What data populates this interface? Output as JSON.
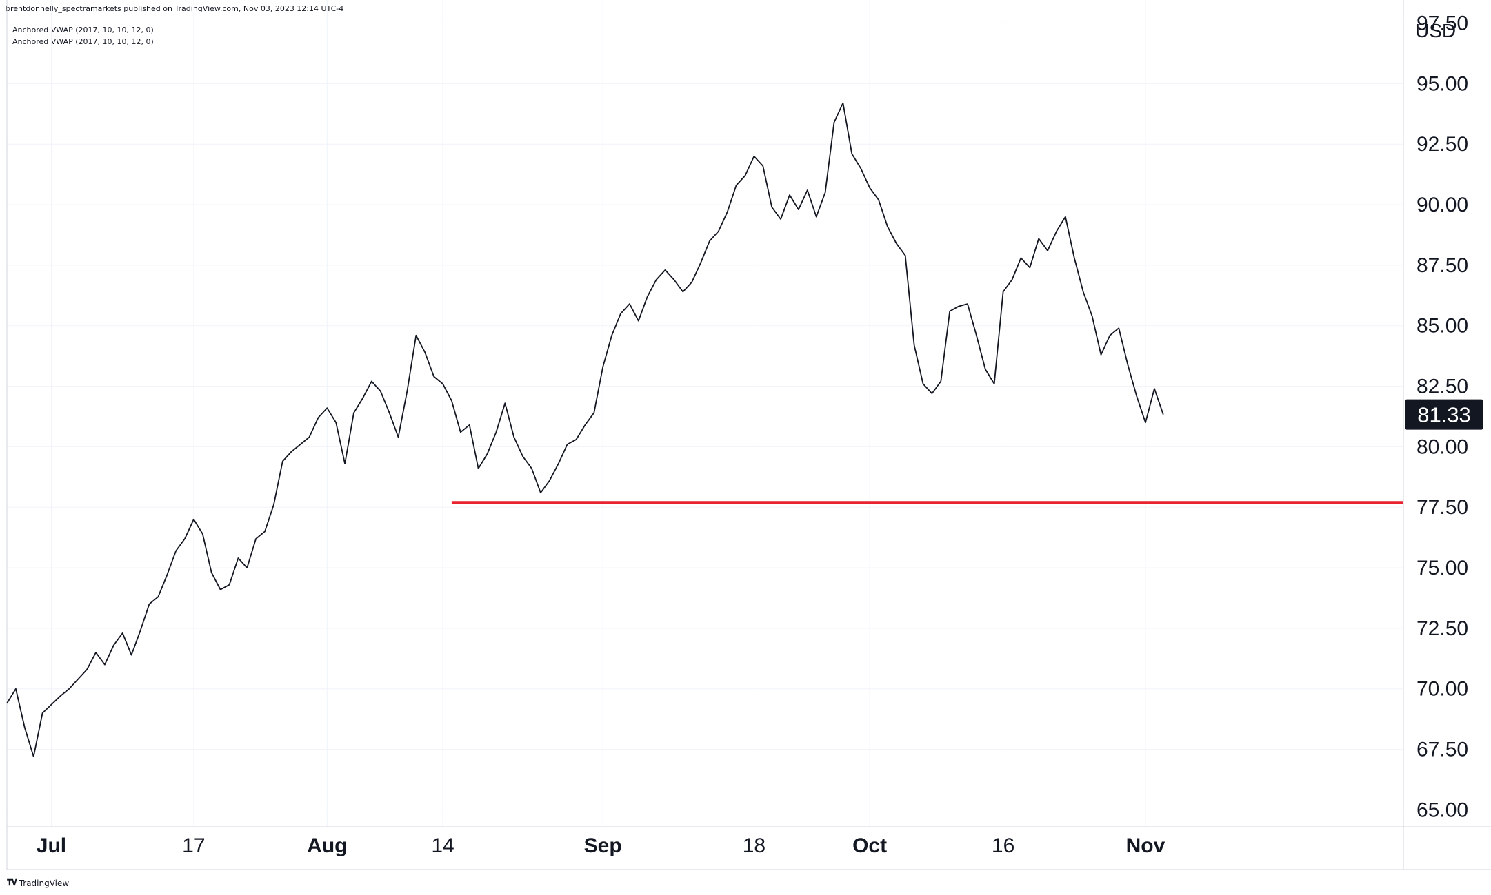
{
  "header": {
    "published_text": "brentdonnelly_spectramarkets published on TradingView.com, Nov 03, 2023 12:14 UTC-4"
  },
  "indicators": [
    "Anchored VWAP (2017, 10, 10, 12, 0)",
    "Anchored VWAP (2017, 10, 10, 12, 0)"
  ],
  "footer": {
    "brand": "TradingView",
    "logo_icon": "tradingview-logo-icon"
  },
  "colors": {
    "price_line": "#131722",
    "support_line": "#e8232f",
    "grid": "#f0f3fa",
    "axis_border": "#d1d4dc",
    "last_price_bg": "#131722",
    "last_price_text": "#ffffff"
  },
  "chart_data": {
    "type": "line",
    "title": "",
    "currency_label": "USD",
    "last_price_label": "81.33",
    "last_price": 81.33,
    "ylim": [
      64.3,
      98.0
    ],
    "xlim": [
      "2023-06-26",
      "2023-11-30"
    ],
    "y_ticks": [
      {
        "value": 65.0,
        "label": "65.00"
      },
      {
        "value": 67.5,
        "label": "67.50"
      },
      {
        "value": 70.0,
        "label": "70.00"
      },
      {
        "value": 72.5,
        "label": "72.50"
      },
      {
        "value": 75.0,
        "label": "75.00"
      },
      {
        "value": 77.5,
        "label": "77.50"
      },
      {
        "value": 80.0,
        "label": "80.00"
      },
      {
        "value": 82.5,
        "label": "82.50"
      },
      {
        "value": 85.0,
        "label": "85.00"
      },
      {
        "value": 87.5,
        "label": "87.50"
      },
      {
        "value": 90.0,
        "label": "90.00"
      },
      {
        "value": 92.5,
        "label": "92.50"
      },
      {
        "value": 95.0,
        "label": "95.00"
      },
      {
        "value": 97.5,
        "label": "97.50"
      }
    ],
    "x_ticks": [
      {
        "date": "2023-07-01",
        "label": "Jul",
        "bold": true
      },
      {
        "date": "2023-07-17",
        "label": "17",
        "bold": false
      },
      {
        "date": "2023-08-01",
        "label": "Aug",
        "bold": true
      },
      {
        "date": "2023-08-14",
        "label": "14",
        "bold": false
      },
      {
        "date": "2023-09-01",
        "label": "Sep",
        "bold": true
      },
      {
        "date": "2023-09-18",
        "label": "18",
        "bold": false
      },
      {
        "date": "2023-10-01",
        "label": "Oct",
        "bold": true
      },
      {
        "date": "2023-10-16",
        "label": "16",
        "bold": false
      },
      {
        "date": "2023-11-01",
        "label": "Nov",
        "bold": true
      }
    ],
    "support_line": {
      "value": 77.7,
      "start": "2023-08-15",
      "end": "2023-11-30"
    },
    "series": [
      {
        "points": [
          [
            "2023-06-26",
            69.4
          ],
          [
            "2023-06-27",
            70.0
          ],
          [
            "2023-06-28",
            68.4
          ],
          [
            "2023-06-29",
            67.2
          ],
          [
            "2023-06-30",
            69.0
          ],
          [
            "2023-07-02",
            69.7
          ],
          [
            "2023-07-03",
            70.0
          ],
          [
            "2023-07-05",
            70.8
          ],
          [
            "2023-07-06",
            71.5
          ],
          [
            "2023-07-07",
            71.0
          ],
          [
            "2023-07-08",
            71.8
          ],
          [
            "2023-07-09",
            72.3
          ],
          [
            "2023-07-10",
            71.4
          ],
          [
            "2023-07-11",
            72.4
          ],
          [
            "2023-07-12",
            73.5
          ],
          [
            "2023-07-13",
            73.8
          ],
          [
            "2023-07-14",
            74.7
          ],
          [
            "2023-07-15",
            75.7
          ],
          [
            "2023-07-16",
            76.2
          ],
          [
            "2023-07-17",
            77.0
          ],
          [
            "2023-07-18",
            76.4
          ],
          [
            "2023-07-19",
            74.8
          ],
          [
            "2023-07-20",
            74.1
          ],
          [
            "2023-07-21",
            74.3
          ],
          [
            "2023-07-22",
            75.4
          ],
          [
            "2023-07-23",
            75.0
          ],
          [
            "2023-07-24",
            76.2
          ],
          [
            "2023-07-25",
            76.5
          ],
          [
            "2023-07-26",
            77.6
          ],
          [
            "2023-07-27",
            79.4
          ],
          [
            "2023-07-28",
            79.8
          ],
          [
            "2023-07-29",
            80.1
          ],
          [
            "2023-07-30",
            80.4
          ],
          [
            "2023-07-31",
            81.2
          ],
          [
            "2023-08-01",
            81.6
          ],
          [
            "2023-08-02",
            81.0
          ],
          [
            "2023-08-03",
            79.3
          ],
          [
            "2023-08-04",
            81.4
          ],
          [
            "2023-08-05",
            82.0
          ],
          [
            "2023-08-06",
            82.7
          ],
          [
            "2023-08-07",
            82.3
          ],
          [
            "2023-08-08",
            81.4
          ],
          [
            "2023-08-09",
            80.4
          ],
          [
            "2023-08-10",
            82.3
          ],
          [
            "2023-08-11",
            84.6
          ],
          [
            "2023-08-12",
            83.9
          ],
          [
            "2023-08-13",
            82.9
          ],
          [
            "2023-08-14",
            82.6
          ],
          [
            "2023-08-15",
            81.9
          ],
          [
            "2023-08-16",
            80.6
          ],
          [
            "2023-08-17",
            80.9
          ],
          [
            "2023-08-18",
            79.1
          ],
          [
            "2023-08-19",
            79.7
          ],
          [
            "2023-08-20",
            80.6
          ],
          [
            "2023-08-21",
            81.8
          ],
          [
            "2023-08-22",
            80.4
          ],
          [
            "2023-08-23",
            79.6
          ],
          [
            "2023-08-24",
            79.1
          ],
          [
            "2023-08-25",
            78.1
          ],
          [
            "2023-08-26",
            78.6
          ],
          [
            "2023-08-27",
            79.3
          ],
          [
            "2023-08-28",
            80.1
          ],
          [
            "2023-08-29",
            80.3
          ],
          [
            "2023-08-30",
            80.9
          ],
          [
            "2023-08-31",
            81.4
          ],
          [
            "2023-09-01",
            83.3
          ],
          [
            "2023-09-02",
            84.6
          ],
          [
            "2023-09-03",
            85.5
          ],
          [
            "2023-09-04",
            85.9
          ],
          [
            "2023-09-05",
            85.2
          ],
          [
            "2023-09-06",
            86.2
          ],
          [
            "2023-09-07",
            86.9
          ],
          [
            "2023-09-08",
            87.3
          ],
          [
            "2023-09-09",
            86.9
          ],
          [
            "2023-09-10",
            86.4
          ],
          [
            "2023-09-11",
            86.8
          ],
          [
            "2023-09-12",
            87.6
          ],
          [
            "2023-09-13",
            88.5
          ],
          [
            "2023-09-14",
            88.9
          ],
          [
            "2023-09-15",
            89.7
          ],
          [
            "2023-09-16",
            90.8
          ],
          [
            "2023-09-17",
            91.2
          ],
          [
            "2023-09-18",
            92.0
          ],
          [
            "2023-09-19",
            91.6
          ],
          [
            "2023-09-20",
            89.9
          ],
          [
            "2023-09-21",
            89.4
          ],
          [
            "2023-09-22",
            90.4
          ],
          [
            "2023-09-23",
            89.8
          ],
          [
            "2023-09-24",
            90.6
          ],
          [
            "2023-09-25",
            89.5
          ],
          [
            "2023-09-26",
            90.5
          ],
          [
            "2023-09-27",
            93.4
          ],
          [
            "2023-09-28",
            94.2
          ],
          [
            "2023-09-29",
            92.1
          ],
          [
            "2023-09-30",
            91.5
          ],
          [
            "2023-10-01",
            90.7
          ],
          [
            "2023-10-02",
            90.2
          ],
          [
            "2023-10-03",
            89.1
          ],
          [
            "2023-10-04",
            88.4
          ],
          [
            "2023-10-05",
            87.9
          ],
          [
            "2023-10-06",
            84.2
          ],
          [
            "2023-10-07",
            82.6
          ],
          [
            "2023-10-08",
            82.2
          ],
          [
            "2023-10-09",
            82.7
          ],
          [
            "2023-10-10",
            85.6
          ],
          [
            "2023-10-11",
            85.8
          ],
          [
            "2023-10-12",
            85.9
          ],
          [
            "2023-10-13",
            84.6
          ],
          [
            "2023-10-14",
            83.2
          ],
          [
            "2023-10-15",
            82.6
          ],
          [
            "2023-10-16",
            86.4
          ],
          [
            "2023-10-17",
            86.9
          ],
          [
            "2023-10-18",
            87.8
          ],
          [
            "2023-10-19",
            87.4
          ],
          [
            "2023-10-20",
            88.6
          ],
          [
            "2023-10-21",
            88.1
          ],
          [
            "2023-10-22",
            88.9
          ],
          [
            "2023-10-23",
            89.5
          ],
          [
            "2023-10-24",
            87.8
          ],
          [
            "2023-10-25",
            86.4
          ],
          [
            "2023-10-26",
            85.4
          ],
          [
            "2023-10-27",
            83.8
          ],
          [
            "2023-10-28",
            84.6
          ],
          [
            "2023-10-29",
            84.9
          ],
          [
            "2023-10-30",
            83.4
          ],
          [
            "2023-10-31",
            82.1
          ],
          [
            "2023-11-01",
            81.0
          ],
          [
            "2023-11-02",
            82.4
          ],
          [
            "2023-11-03",
            81.33
          ]
        ]
      }
    ]
  }
}
